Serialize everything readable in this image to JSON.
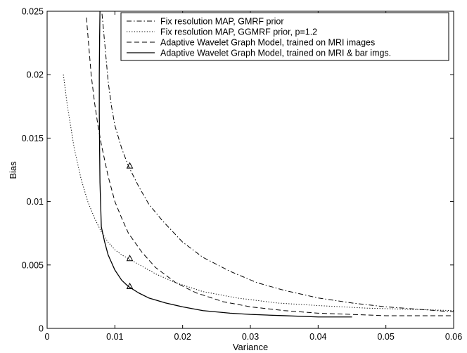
{
  "chart_data": {
    "type": "line",
    "title": "",
    "xlabel": "Variance",
    "ylabel": "Bias",
    "xlim": [
      0,
      0.06
    ],
    "ylim": [
      0,
      0.025
    ],
    "xticks": [
      0,
      0.01,
      0.02,
      0.03,
      0.04,
      0.05,
      0.06
    ],
    "xtick_labels": [
      "0",
      "0.01",
      "0.02",
      "0.03",
      "0.04",
      "0.05",
      "0.06"
    ],
    "yticks": [
      0,
      0.005,
      0.01,
      0.015,
      0.02,
      0.025
    ],
    "ytick_labels": [
      "0",
      "0.005",
      "0.01",
      "0.015",
      "0.02",
      "0.025"
    ],
    "grid": false,
    "legend_position": "top-right",
    "series": [
      {
        "name": "Fix resolution MAP, GMRF prior",
        "style": "dash-dot",
        "x": [
          0.0081,
          0.0085,
          0.009,
          0.0095,
          0.01,
          0.011,
          0.012,
          0.0135,
          0.015,
          0.017,
          0.02,
          0.023,
          0.027,
          0.031,
          0.035,
          0.04,
          0.045,
          0.05,
          0.055,
          0.06
        ],
        "y": [
          0.0248,
          0.0225,
          0.0195,
          0.0175,
          0.016,
          0.0142,
          0.0128,
          0.0112,
          0.0098,
          0.0085,
          0.0068,
          0.0056,
          0.0045,
          0.0036,
          0.003,
          0.0024,
          0.002,
          0.0017,
          0.0015,
          0.0013
        ]
      },
      {
        "name": "Fix resolution MAP, GGMRF prior, p=1.2",
        "style": "dotted",
        "x": [
          0.0024,
          0.003,
          0.004,
          0.005,
          0.006,
          0.007,
          0.008,
          0.009,
          0.01,
          0.011,
          0.012,
          0.014,
          0.016,
          0.019,
          0.023,
          0.028,
          0.034,
          0.04,
          0.047,
          0.054,
          0.06
        ],
        "y": [
          0.02,
          0.0175,
          0.0142,
          0.0118,
          0.01,
          0.0087,
          0.0076,
          0.0068,
          0.0062,
          0.0058,
          0.0055,
          0.0049,
          0.0043,
          0.0036,
          0.0029,
          0.0024,
          0.002,
          0.0018,
          0.0016,
          0.0015,
          0.0014
        ]
      },
      {
        "name": "Adaptive Wavelet Graph Model, trained on MRI images",
        "style": "dashed",
        "x": [
          0.0058,
          0.0065,
          0.007,
          0.0075,
          0.008,
          0.009,
          0.01,
          0.011,
          0.012,
          0.014,
          0.016,
          0.019,
          0.022,
          0.026,
          0.03,
          0.035,
          0.04,
          0.045,
          0.05,
          0.055,
          0.06
        ],
        "y": [
          0.0245,
          0.02,
          0.0178,
          0.016,
          0.0145,
          0.012,
          0.01,
          0.0087,
          0.0075,
          0.006,
          0.0048,
          0.0036,
          0.0028,
          0.0021,
          0.0017,
          0.0014,
          0.0012,
          0.0011,
          0.001,
          0.001,
          0.001
        ]
      },
      {
        "name": "Adaptive Wavelet Graph Model, trained on MRI & bar imgs.",
        "style": "solid",
        "x": [
          0.0078,
          0.00775,
          0.0077,
          0.0077,
          0.00775,
          0.0078,
          0.008,
          0.0085,
          0.009,
          0.01,
          0.011,
          0.012,
          0.0135,
          0.015,
          0.0175,
          0.02,
          0.023,
          0.027,
          0.03,
          0.035,
          0.04,
          0.045
        ],
        "y": [
          0.025,
          0.023,
          0.02,
          0.017,
          0.014,
          0.0115,
          0.008,
          0.0068,
          0.0058,
          0.0046,
          0.0038,
          0.0033,
          0.0028,
          0.0024,
          0.002,
          0.0017,
          0.0014,
          0.0012,
          0.0011,
          0.001,
          0.0009,
          0.0009
        ]
      }
    ],
    "markers": [
      {
        "shape": "triangle",
        "x": 0.0122,
        "y": 0.0128
      },
      {
        "shape": "triangle",
        "x": 0.0122,
        "y": 0.0055
      },
      {
        "shape": "triangle",
        "x": 0.0122,
        "y": 0.0033
      }
    ]
  }
}
